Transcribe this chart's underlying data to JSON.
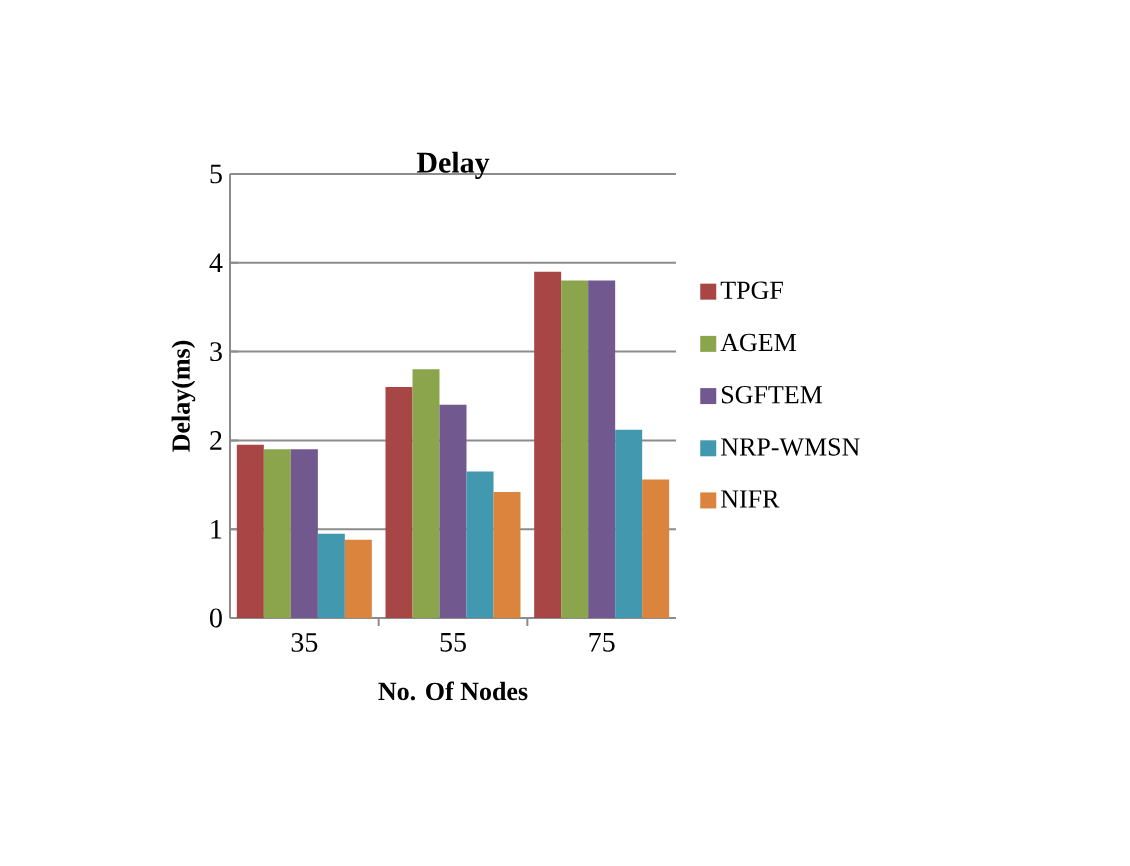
{
  "chart_data": {
    "type": "bar",
    "title": "Delay",
    "xlabel": "No. Of Nodes",
    "ylabel": "Delay(ms)",
    "categories": [
      "35",
      "55",
      "75"
    ],
    "series": [
      {
        "name": "TPGF",
        "color": "#a84545",
        "values": [
          1.95,
          2.6,
          3.9
        ]
      },
      {
        "name": "AGEM",
        "color": "#8aa54c",
        "values": [
          1.9,
          2.8,
          3.8
        ]
      },
      {
        "name": "SGFTEM",
        "color": "#71588f",
        "values": [
          1.9,
          2.4,
          3.8
        ]
      },
      {
        "name": "NRP-WMSN",
        "color": "#4198af",
        "values": [
          0.95,
          1.65,
          2.12
        ]
      },
      {
        "name": "NIFR",
        "color": "#db843d",
        "values": [
          0.88,
          1.42,
          1.56
        ]
      }
    ],
    "ylim": [
      0,
      5
    ],
    "yticks": [
      0,
      1,
      2,
      3,
      4,
      5
    ],
    "grid": "y",
    "legend": "right"
  }
}
